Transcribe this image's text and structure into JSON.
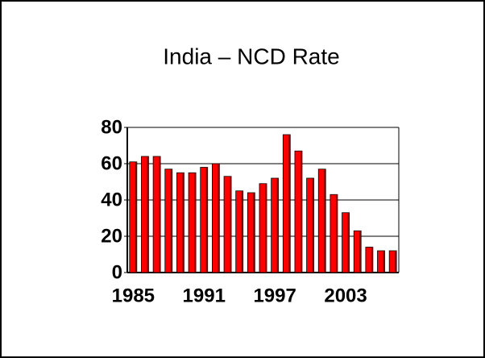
{
  "chart_data": {
    "type": "bar",
    "title": "India – NCD Rate",
    "categories": [
      "1985",
      null,
      null,
      null,
      null,
      null,
      "1991",
      null,
      null,
      null,
      null,
      null,
      "1997",
      null,
      null,
      null,
      null,
      null,
      "2003",
      null,
      null,
      null,
      null
    ],
    "values": [
      61,
      64,
      64,
      57,
      55,
      55,
      58,
      60,
      53,
      45,
      44,
      49,
      52,
      76,
      67,
      52,
      57,
      43,
      33,
      23,
      14,
      12,
      12
    ],
    "color": "#ff0000",
    "ylim": [
      0,
      80
    ],
    "yticks": [
      0,
      20,
      40,
      60,
      80
    ],
    "grid": true
  }
}
